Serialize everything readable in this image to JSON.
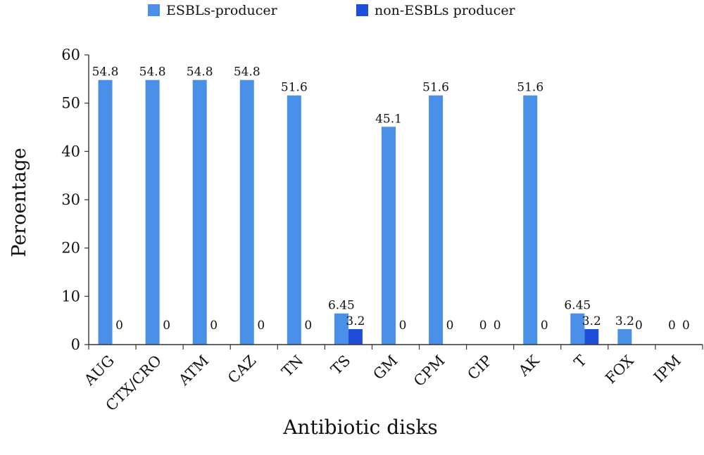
{
  "chart_data": {
    "type": "bar",
    "xlabel": "Antibiotic disks",
    "ylabel": "Peroentage",
    "ylim": [
      0,
      60
    ],
    "yticks": [
      0,
      10,
      20,
      30,
      40,
      50,
      60
    ],
    "grid": false,
    "legend_position": "top",
    "categories": [
      "AUG",
      "CTX/CRO",
      "ATM",
      "CAZ",
      "TN",
      "TS",
      "GM",
      "CPM",
      "CIP",
      "AK",
      "T",
      "FOX",
      "IPM"
    ],
    "series": [
      {
        "name": "ESBLs-producer",
        "color": "#4a90e8",
        "values": [
          54.8,
          54.8,
          54.8,
          54.8,
          51.6,
          6.45,
          45.1,
          51.6,
          0,
          51.6,
          6.45,
          3.2,
          0
        ],
        "labels": [
          "54.8",
          "54.8",
          "54.8",
          "54.8",
          "51.6",
          "6.45",
          "45.1",
          "51.6",
          "0",
          "51.6",
          "6.45",
          "3.2",
          "0"
        ]
      },
      {
        "name": "non-ESBLs producer",
        "color": "#1f4fd8",
        "values": [
          0,
          0,
          0,
          0,
          0,
          3.2,
          0,
          0,
          0,
          0,
          3.2,
          0,
          0
        ],
        "labels": [
          "0",
          "0",
          "0",
          "0",
          "0",
          "3.2",
          "0",
          "0",
          "0",
          "0",
          "3.2",
          "0",
          "0"
        ]
      }
    ]
  }
}
